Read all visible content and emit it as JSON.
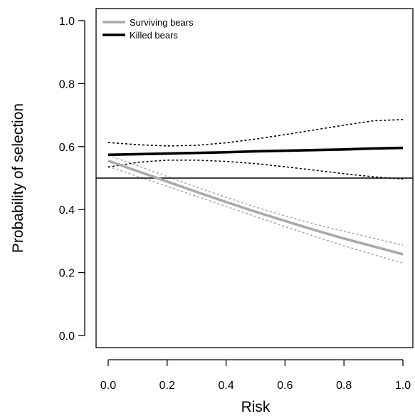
{
  "chart_data": {
    "type": "line",
    "xlabel": "Risk",
    "ylabel": "Probability of selection",
    "xlim": [
      0,
      1
    ],
    "ylim": [
      0,
      1
    ],
    "xticks": [
      "0.0",
      "0.2",
      "0.4",
      "0.6",
      "0.8",
      "1.0"
    ],
    "yticks": [
      "0.0",
      "0.2",
      "0.4",
      "0.6",
      "0.8",
      "1.0"
    ],
    "grid": false,
    "legend_position": "top-left",
    "reference_line": {
      "y": 0.5
    },
    "series": [
      {
        "name": "Surviving bears",
        "color": "#aaaaaa",
        "x": [
          0,
          0.1,
          0.2,
          0.3,
          0.4,
          0.5,
          0.6,
          0.7,
          0.8,
          0.9,
          1.0
        ],
        "y": [
          0.555,
          0.522,
          0.489,
          0.456,
          0.424,
          0.393,
          0.364,
          0.335,
          0.308,
          0.283,
          0.258
        ],
        "ci_lower": [
          0.537,
          0.505,
          0.474,
          0.442,
          0.41,
          0.378,
          0.346,
          0.315,
          0.285,
          0.257,
          0.23
        ],
        "ci_upper": [
          0.572,
          0.539,
          0.505,
          0.471,
          0.439,
          0.408,
          0.38,
          0.354,
          0.331,
          0.309,
          0.287
        ]
      },
      {
        "name": "Killed bears",
        "color": "#000000",
        "x": [
          0,
          0.1,
          0.2,
          0.3,
          0.4,
          0.5,
          0.6,
          0.7,
          0.8,
          0.9,
          1.0
        ],
        "y": [
          0.574,
          0.576,
          0.578,
          0.58,
          0.582,
          0.585,
          0.587,
          0.589,
          0.591,
          0.594,
          0.596
        ],
        "ci_lower": [
          0.535,
          0.55,
          0.557,
          0.557,
          0.553,
          0.546,
          0.536,
          0.525,
          0.514,
          0.504,
          0.497
        ],
        "ci_upper": [
          0.613,
          0.606,
          0.602,
          0.604,
          0.612,
          0.624,
          0.638,
          0.653,
          0.668,
          0.682,
          0.686
        ]
      }
    ]
  }
}
